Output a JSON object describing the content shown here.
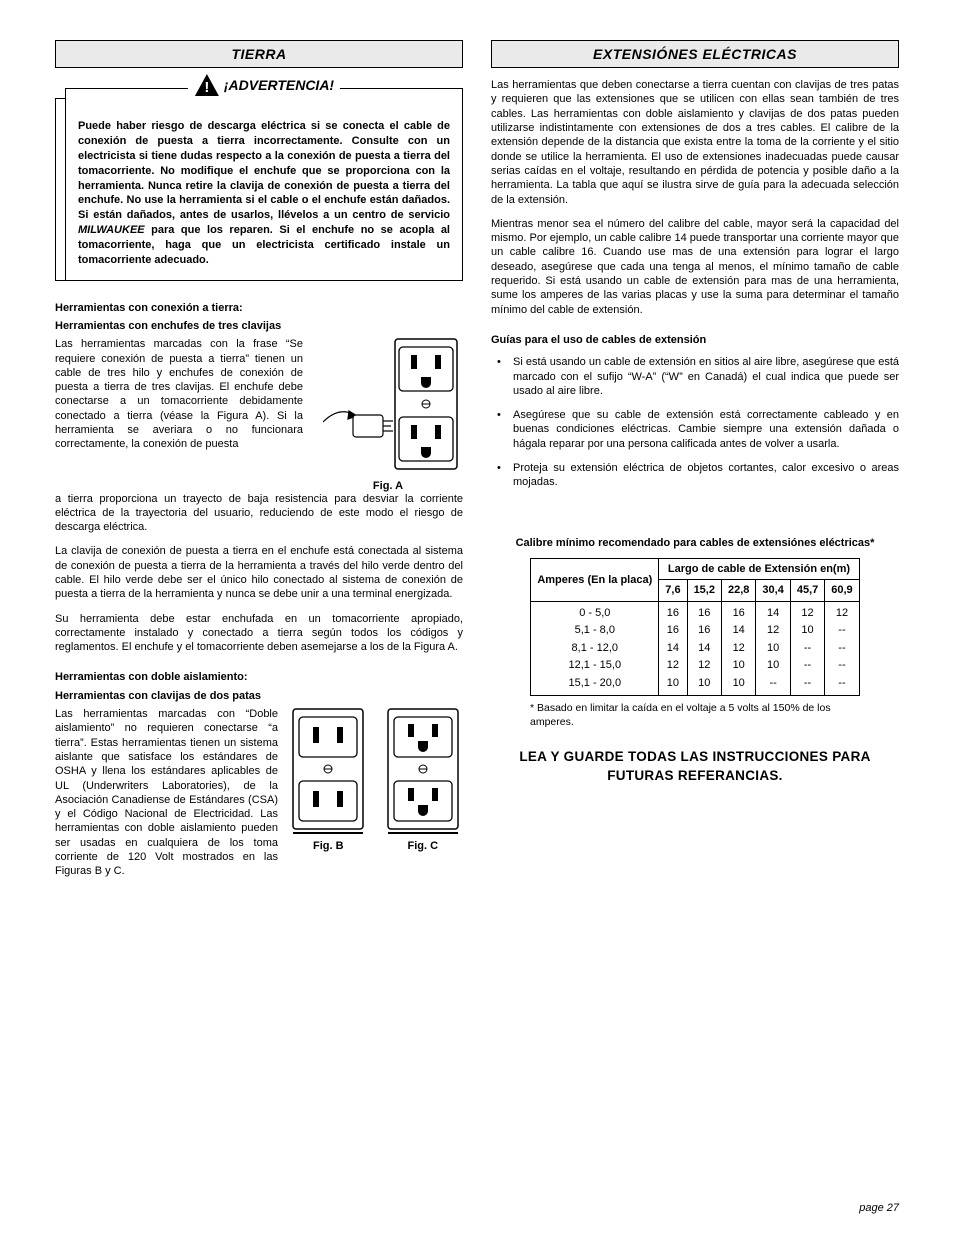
{
  "left": {
    "header": "TIERRA",
    "warning_label": "¡ADVERTENCIA!",
    "warning_body_pre": "Puede haber riesgo de descarga eléctrica si se conecta el cable de conexión de puesta a tierra incorrectamente. Consulte con un electricista si tiene dudas respecto a la conexión de puesta a tierra del tomacorriente. No modifique el enchufe que se proporciona con la herramienta. Nunca retire la clavija de conexión de puesta a tierra del enchufe. No use la herramienta si el cable o el enchufe están dañados. Si están dañados, antes de usarlos, llévelos a un centro de servicio ",
    "warning_body_milwaukee": "MILWAUKEE",
    "warning_body_post": " para que los reparen. Si el enchufe no se acopla al tomacorriente, haga que un electricista certificado instale un tomacorriente adecuado.",
    "sub1a": "Herramientas con conexión a tierra:",
    "sub1b": "Herramientas con enchufes de tres clavijas",
    "figA": "Fig. A",
    "p1": "Las herramientas marcadas con la frase “Se requiere conexión de puesta a tierra” tienen un cable de tres hilo y enchufes de conexión de puesta a tierra de tres clavijas. El enchufe debe conectarse a un tomacorriente debidamente conectado a tierra (véase la Figura A). Si la herramienta se averiara o no funcionara correctamente, la conexión de puesta",
    "p1b": "a tierra proporciona un trayecto de baja resistencia para desviar la corriente eléctrica de la trayectoria del usuario, reduciendo de este modo el riesgo de descarga eléctrica.",
    "p2": "La clavija de conexión de puesta a tierra en el enchufe está conectada al sistema de conexión de puesta a tierra de la herramienta a través del hilo verde dentro del cable. El hilo verde debe ser el único hilo conectado al sistema de conexión de puesta a tierra de la herramienta y nunca se debe unir a una terminal energizada.",
    "p3": "Su herramienta debe estar enchufada en un tomacorriente apropiado, correctamente instalado y conectado a tierra según todos los códigos y reglamentos. El enchufe y el tomacorriente deben asemejarse a los de la Figura A.",
    "sub2a": "Herramientas con doble aislamiento:",
    "sub2b": "Herramientas con clavijas de dos patas",
    "figB": "Fig. B",
    "figC": "Fig. C",
    "p4": "Las herramientas marcadas con “Doble aislamiento” no requieren conectarse “a tierra”. Estas herramientas tienen un sistema aislante que satisface los estándares de OSHA y llena los estándares aplicables de UL (Underwriters Laboratories), de la Asociación Canadiense de Estándares (CSA) y el Código Nacional de Electricidad. Las herramientas con doble aislamiento pueden ser usadas en cualquiera de los toma corriente de 120 Volt mostrados en las Figuras B y C."
  },
  "right": {
    "header": "EXTENSIÓNES ELÉCTRICAS",
    "p1": "Las herramientas que deben conectarse a tierra cuentan con clavijas de tres patas y requieren que las extensiones que se utilicen con ellas sean también de tres cables. Las herramientas con doble aislamiento y clavijas de dos patas pueden utilizarse indistintamente con extensiones de dos a tres cables. El calibre de la extensión depende de la distancia que exista entre la toma de la corriente y el sitio donde se utilice la herramienta. El uso de extensiones inadecuadas puede causar serias caídas en el voltaje, resultando en pérdida de potencia y posible daño a la herramienta. La tabla que aquí se ilustra sirve de guía para la adecuada selección de la extensión.",
    "p2": "Mientras menor sea el número del calibre del cable, mayor será la capacidad del mismo. Por ejemplo, un cable calibre 14 puede transportar una corriente mayor que un cable calibre 16. Cuando use mas de una extensión para lograr el largo deseado, asegúrese que cada una tenga al menos, el mínimo tamaño de cable requerido. Si está usando un cable de extensión para mas de una herramienta, sume los amperes de las varias placas y use la suma para determinar el tamaño mínimo del cable de extensión.",
    "guides_title": "Guías para el uso de cables de extensión",
    "g1": "Si está usando un cable de extensión en sitios al aire libre, asegúrese que está marcado con el sufijo “W-A” (“W” en Canadá) el cual indica que puede ser usado al aire libre.",
    "g2": "Asegúrese que su cable de extensión está correctamente cableado y en buenas condiciones eléctricas. Cambie siempre una extensión dañada o hágala reparar por una persona calificada antes de volver a usarla.",
    "g3": "Proteja su extensión eléctrica de objetos cortantes, calor excesivo o areas mojadas.",
    "table_title": "Calibre mínimo recomendado para cables de extensiónes eléctricas*",
    "amp_header": "Amperes (En la placa)",
    "len_header": "Largo de cable de Extensión en(m)",
    "lengths": [
      "7,6",
      "15,2",
      "22,8",
      "30,4",
      "45,7",
      "60,9"
    ],
    "rows": [
      {
        "amp": "0 - 5,0",
        "v": [
          "16",
          "16",
          "16",
          "14",
          "12",
          "12"
        ]
      },
      {
        "amp": "5,1 - 8,0",
        "v": [
          "16",
          "16",
          "14",
          "12",
          "10",
          "--"
        ]
      },
      {
        "amp": "8,1 - 12,0",
        "v": [
          "14",
          "14",
          "12",
          "10",
          "--",
          "--"
        ]
      },
      {
        "amp": "12,1 - 15,0",
        "v": [
          "12",
          "12",
          "10",
          "10",
          "--",
          "--"
        ]
      },
      {
        "amp": "15,1 - 20,0",
        "v": [
          "10",
          "10",
          "10",
          "--",
          "--",
          "--"
        ]
      }
    ],
    "table_note": "* Basado en limitar la caída en el voltaje a 5 volts al 150% de los amperes.",
    "read_save": "LEA Y GUARDE TODAS LAS INSTRUCCIONES PARA FUTURAS REFERANCIAS."
  },
  "page_number": "page 27"
}
